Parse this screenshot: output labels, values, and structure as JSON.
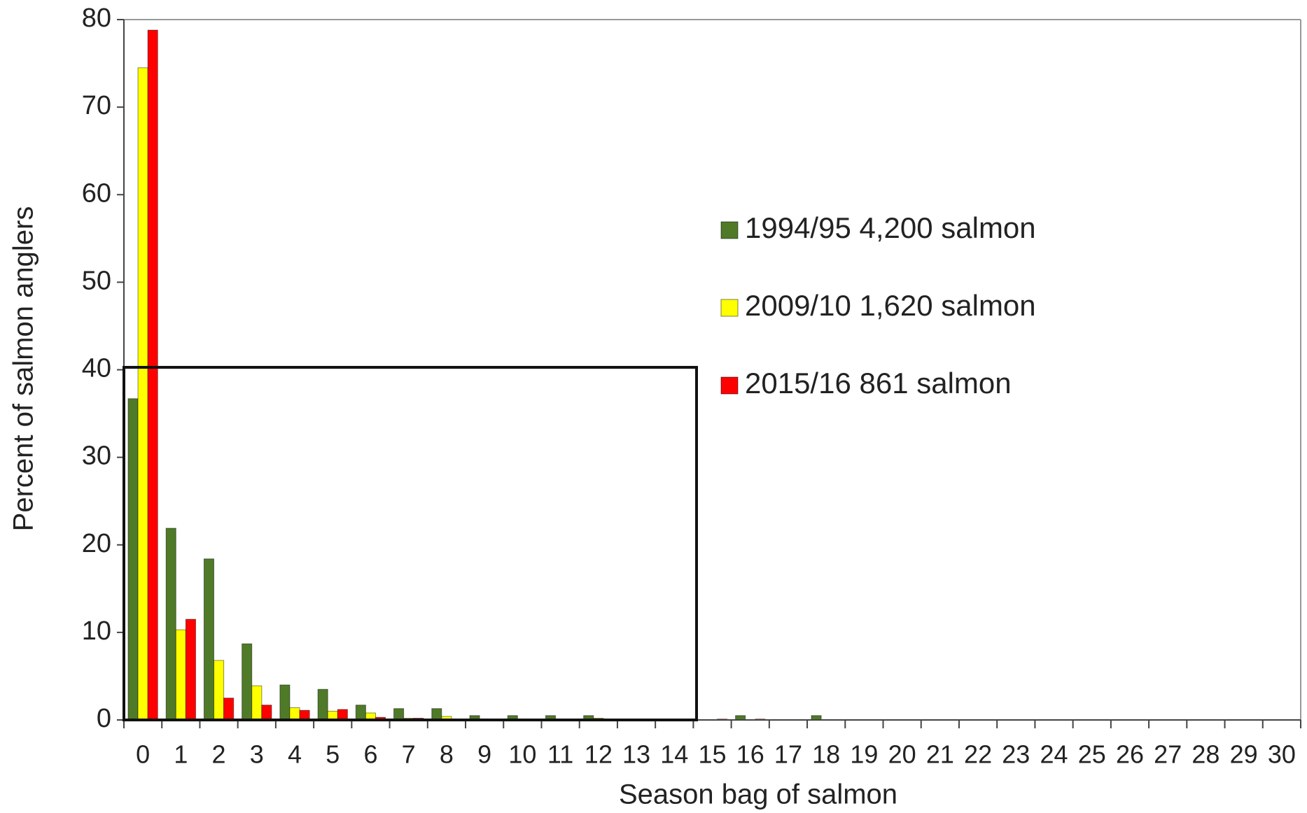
{
  "chart_data": {
    "type": "bar",
    "x_label": "Season bag of salmon",
    "y_label": "Percent of salmon anglers",
    "categories": [
      "0",
      "1",
      "2",
      "3",
      "4",
      "5",
      "6",
      "7",
      "8",
      "9",
      "10",
      "11",
      "12",
      "13",
      "14",
      "15",
      "16",
      "17",
      "18",
      "19",
      "20",
      "21",
      "22",
      "23",
      "24",
      "25",
      "26",
      "27",
      "28",
      "29",
      "30"
    ],
    "series": [
      {
        "name": "1994/95 4,200 salmon",
        "color": "#4f7a28",
        "values": [
          36.7,
          21.9,
          18.4,
          8.7,
          4.0,
          3.5,
          1.7,
          1.3,
          1.3,
          0.5,
          0.5,
          0.5,
          0.5,
          0,
          0,
          0,
          0.5,
          0,
          0.5,
          0,
          0,
          0,
          0,
          0,
          0,
          0,
          0,
          0,
          0,
          0,
          0
        ]
      },
      {
        "name": "2009/10 1,620 salmon",
        "color": "#ffff00",
        "values": [
          74.5,
          10.3,
          6.8,
          3.9,
          1.4,
          1.0,
          0.8,
          0.2,
          0.4,
          0.1,
          0.1,
          0.1,
          0.2,
          0.1,
          0,
          0,
          0,
          0,
          0,
          0,
          0,
          0,
          0,
          0,
          0,
          0,
          0,
          0,
          0,
          0,
          0
        ]
      },
      {
        "name": "2015/16 861 salmon",
        "color": "#ff0000",
        "values": [
          78.8,
          11.5,
          2.5,
          1.7,
          1.1,
          1.2,
          0.3,
          0.2,
          0.1,
          0.1,
          0.1,
          0.1,
          0.1,
          0,
          0,
          0.1,
          0.1,
          0,
          0,
          0,
          0,
          0,
          0,
          0,
          0,
          0,
          0,
          0,
          0,
          0,
          0
        ]
      }
    ],
    "ylim": [
      0,
      80
    ],
    "yticks": [
      0,
      10,
      20,
      30,
      40,
      50,
      60,
      70,
      80
    ]
  }
}
